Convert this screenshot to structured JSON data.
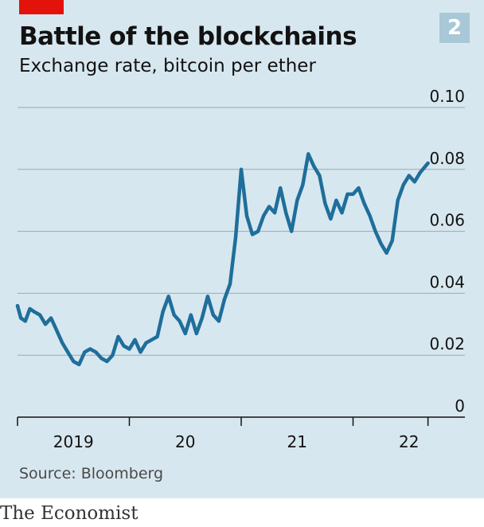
{
  "header": {
    "title": "Battle of the blockchains",
    "subtitle": "Exchange rate, bitcoin per ether",
    "badge": "2"
  },
  "footer": {
    "source": "Source: Bloomberg",
    "brand": "The Economist"
  },
  "colors": {
    "line": "#1f6e9b",
    "panel": "#d7e7ef",
    "accent_red": "#e3120b",
    "badge": "#a8c8d8"
  },
  "chart_data": {
    "type": "line",
    "title": "Battle of the blockchains",
    "subtitle": "Exchange rate, bitcoin per ether",
    "ylabel": "",
    "xlabel": "",
    "ylim": [
      0,
      0.1
    ],
    "y_ticks": [
      "0.10",
      "0.08",
      "0.06",
      "0.04",
      "0.02",
      "0"
    ],
    "y_tick_values": [
      0.1,
      0.08,
      0.06,
      0.04,
      0.02,
      0
    ],
    "x_range": [
      2019.0,
      2023.0
    ],
    "x_ticks": [
      {
        "label": "2019",
        "x": 2019.5
      },
      {
        "label": "20",
        "x": 2020.5
      },
      {
        "label": "21",
        "x": 2021.5
      },
      {
        "label": "22",
        "x": 2022.5
      }
    ],
    "x_boundaries": [
      2019.0,
      2020.0,
      2021.0,
      2022.0,
      2022.67
    ],
    "grid": true,
    "series": [
      {
        "name": "",
        "x": [
          2019.0,
          2019.03,
          2019.07,
          2019.11,
          2019.15,
          2019.2,
          2019.25,
          2019.3,
          2019.35,
          2019.4,
          2019.45,
          2019.5,
          2019.55,
          2019.6,
          2019.65,
          2019.7,
          2019.75,
          2019.8,
          2019.85,
          2019.9,
          2019.95,
          2020.0,
          2020.05,
          2020.1,
          2020.15,
          2020.2,
          2020.25,
          2020.3,
          2020.35,
          2020.4,
          2020.45,
          2020.5,
          2020.55,
          2020.6,
          2020.65,
          2020.7,
          2020.75,
          2020.8,
          2020.85,
          2020.9,
          2020.95,
          2021.0,
          2021.05,
          2021.1,
          2021.15,
          2021.2,
          2021.25,
          2021.3,
          2021.35,
          2021.4,
          2021.45,
          2021.5,
          2021.55,
          2021.6,
          2021.65,
          2021.7,
          2021.75,
          2021.8,
          2021.85,
          2021.9,
          2021.95,
          2022.0,
          2022.05,
          2022.1,
          2022.15,
          2022.2,
          2022.25,
          2022.3,
          2022.35,
          2022.4,
          2022.45,
          2022.5,
          2022.55,
          2022.6,
          2022.67
        ],
        "values": [
          0.036,
          0.032,
          0.031,
          0.035,
          0.034,
          0.033,
          0.03,
          0.032,
          0.028,
          0.024,
          0.021,
          0.018,
          0.017,
          0.021,
          0.022,
          0.021,
          0.019,
          0.018,
          0.02,
          0.026,
          0.023,
          0.022,
          0.025,
          0.021,
          0.024,
          0.025,
          0.026,
          0.034,
          0.039,
          0.033,
          0.031,
          0.027,
          0.033,
          0.027,
          0.032,
          0.039,
          0.033,
          0.031,
          0.038,
          0.043,
          0.058,
          0.08,
          0.065,
          0.059,
          0.06,
          0.065,
          0.068,
          0.066,
          0.074,
          0.066,
          0.06,
          0.07,
          0.075,
          0.085,
          0.081,
          0.078,
          0.069,
          0.064,
          0.07,
          0.066,
          0.072,
          0.072,
          0.074,
          0.069,
          0.065,
          0.06,
          0.056,
          0.053,
          0.057,
          0.07,
          0.075,
          0.078,
          0.076,
          0.079,
          0.082
        ]
      }
    ]
  }
}
